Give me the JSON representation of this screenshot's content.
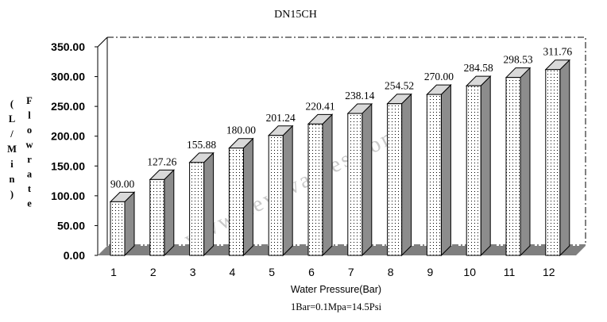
{
  "chart_data": {
    "type": "bar",
    "title": "DN15CH",
    "xlabel": "Water Pressure(Bar)",
    "subtitle": "1Bar=0.1Mpa=14.5Psi",
    "ylabel": "Flowrate (L/Min)",
    "ylabel_chars_outer": [
      "F",
      "l",
      "o",
      "w",
      "r",
      "a",
      "t",
      "e"
    ],
    "ylabel_chars_inner": [
      "(",
      "L",
      "/",
      "M",
      "i",
      "n",
      ")"
    ],
    "categories": [
      "1",
      "2",
      "3",
      "4",
      "5",
      "6",
      "7",
      "8",
      "9",
      "10",
      "11",
      "12"
    ],
    "values": [
      90.0,
      127.26,
      155.88,
      180.0,
      201.24,
      220.41,
      238.14,
      254.52,
      270.0,
      284.58,
      298.53,
      311.76
    ],
    "value_labels": [
      "90.00",
      "127.26",
      "155.88",
      "180.00",
      "201.24",
      "220.41",
      "238.14",
      "254.52",
      "270.00",
      "284.58",
      "298.53",
      "311.76"
    ],
    "ylim": [
      0,
      350
    ],
    "yticks": [
      "0.00",
      "50.00",
      "100.00",
      "150.00",
      "200.00",
      "250.00",
      "300.00",
      "350.00"
    ],
    "grid": false,
    "legend": "none",
    "style": "3d dotted bars"
  },
  "watermark": "www.keyuvalves.com",
  "colors": {
    "bar_front": "#ffffff",
    "bar_dots": "#000000",
    "bar_side": "#8c8c8c",
    "bar_top": "#d9d9d9",
    "floor": "#7f7f7f",
    "watermark": "#c8c8c8"
  }
}
